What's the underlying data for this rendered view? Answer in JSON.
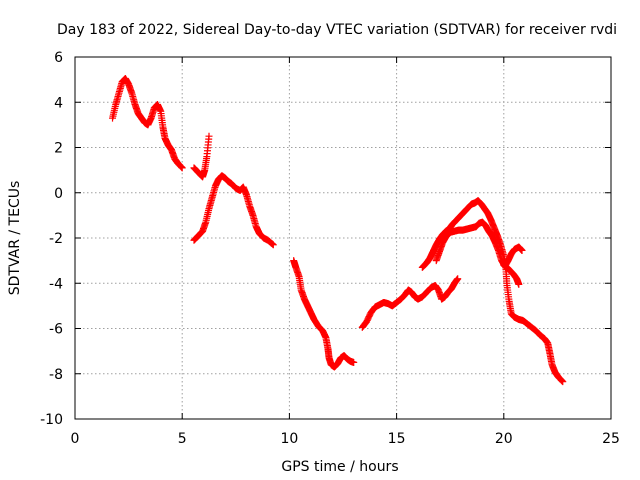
{
  "chart_data": {
    "type": "scatter",
    "title": "Day 183 of 2022, Sidereal Day-to-day VTEC variation (SDTVAR) for receiver rvdi",
    "xlabel": "GPS time / hours",
    "ylabel": "SDTVAR / TECUs",
    "xlim": [
      0,
      25
    ],
    "ylim": [
      -10,
      6
    ],
    "xticks": [
      0,
      5,
      10,
      15,
      20,
      25
    ],
    "yticks": [
      -10,
      -8,
      -6,
      -4,
      -2,
      0,
      2,
      4,
      6
    ],
    "grid": true,
    "marker": "plus",
    "color": "#ff0000",
    "series": [
      {
        "name": "segment-1",
        "points": [
          [
            1.75,
            3.3
          ],
          [
            1.9,
            3.9
          ],
          [
            2.05,
            4.4
          ],
          [
            2.2,
            4.9
          ],
          [
            2.35,
            5.05
          ],
          [
            2.5,
            4.8
          ],
          [
            2.65,
            4.4
          ],
          [
            2.8,
            3.9
          ],
          [
            2.95,
            3.5
          ],
          [
            3.1,
            3.3
          ],
          [
            3.25,
            3.1
          ],
          [
            3.4,
            3.0
          ],
          [
            3.55,
            3.3
          ],
          [
            3.7,
            3.75
          ],
          [
            3.85,
            3.9
          ],
          [
            4.0,
            3.6
          ],
          [
            4.1,
            2.9
          ],
          [
            4.2,
            2.4
          ],
          [
            4.35,
            2.1
          ],
          [
            4.5,
            1.9
          ],
          [
            4.65,
            1.5
          ],
          [
            4.8,
            1.3
          ],
          [
            5.0,
            1.1
          ]
        ]
      },
      {
        "name": "segment-2",
        "points": [
          [
            5.55,
            1.1
          ],
          [
            5.75,
            0.9
          ],
          [
            5.95,
            0.7
          ],
          [
            6.05,
            1.0
          ],
          [
            6.15,
            1.6
          ],
          [
            6.25,
            2.5
          ]
        ]
      },
      {
        "name": "segment-3",
        "points": [
          [
            5.55,
            -2.1
          ],
          [
            5.75,
            -1.9
          ],
          [
            5.95,
            -1.7
          ],
          [
            6.1,
            -1.3
          ],
          [
            6.25,
            -0.7
          ],
          [
            6.4,
            -0.2
          ],
          [
            6.55,
            0.3
          ],
          [
            6.7,
            0.6
          ],
          [
            6.85,
            0.75
          ],
          [
            7.0,
            0.65
          ],
          [
            7.15,
            0.5
          ],
          [
            7.3,
            0.4
          ],
          [
            7.5,
            0.2
          ],
          [
            7.7,
            0.1
          ],
          [
            7.85,
            0.25
          ],
          [
            8.0,
            -0.1
          ],
          [
            8.15,
            -0.6
          ],
          [
            8.3,
            -1.0
          ],
          [
            8.45,
            -1.5
          ],
          [
            8.6,
            -1.8
          ],
          [
            8.8,
            -2.0
          ],
          [
            9.0,
            -2.1
          ],
          [
            9.25,
            -2.3
          ]
        ]
      },
      {
        "name": "segment-4",
        "points": [
          [
            10.2,
            -3.0
          ],
          [
            10.3,
            -3.3
          ],
          [
            10.45,
            -3.7
          ],
          [
            10.55,
            -4.3
          ],
          [
            10.7,
            -4.7
          ],
          [
            10.85,
            -5.0
          ],
          [
            11.0,
            -5.3
          ],
          [
            11.15,
            -5.6
          ],
          [
            11.35,
            -5.9
          ],
          [
            11.55,
            -6.1
          ],
          [
            11.7,
            -6.4
          ],
          [
            11.8,
            -6.9
          ],
          [
            11.85,
            -7.3
          ],
          [
            11.95,
            -7.6
          ],
          [
            12.1,
            -7.7
          ],
          [
            12.25,
            -7.55
          ],
          [
            12.4,
            -7.3
          ],
          [
            12.55,
            -7.2
          ],
          [
            12.7,
            -7.35
          ],
          [
            12.85,
            -7.45
          ],
          [
            13.0,
            -7.5
          ]
        ]
      },
      {
        "name": "segment-5",
        "points": [
          [
            13.4,
            -5.95
          ],
          [
            13.6,
            -5.7
          ],
          [
            13.8,
            -5.3
          ],
          [
            14.0,
            -5.05
          ],
          [
            14.2,
            -4.95
          ],
          [
            14.4,
            -4.85
          ],
          [
            14.6,
            -4.9
          ],
          [
            14.8,
            -5.0
          ],
          [
            15.0,
            -4.85
          ],
          [
            15.2,
            -4.7
          ],
          [
            15.4,
            -4.5
          ],
          [
            15.55,
            -4.3
          ],
          [
            15.7,
            -4.4
          ],
          [
            15.85,
            -4.6
          ],
          [
            16.0,
            -4.7
          ],
          [
            16.2,
            -4.6
          ],
          [
            16.4,
            -4.4
          ],
          [
            16.6,
            -4.2
          ],
          [
            16.8,
            -4.1
          ],
          [
            16.95,
            -4.3
          ],
          [
            17.1,
            -4.7
          ],
          [
            17.25,
            -4.6
          ],
          [
            17.4,
            -4.4
          ],
          [
            17.55,
            -4.25
          ],
          [
            17.7,
            -4.0
          ],
          [
            17.85,
            -3.8
          ]
        ]
      },
      {
        "name": "segment-6",
        "points": [
          [
            16.2,
            -3.3
          ],
          [
            16.4,
            -3.1
          ],
          [
            16.55,
            -2.9
          ],
          [
            16.7,
            -2.6
          ],
          [
            16.85,
            -2.3
          ],
          [
            17.0,
            -2.05
          ],
          [
            17.15,
            -1.85
          ],
          [
            17.3,
            -1.7
          ],
          [
            17.45,
            -1.6
          ],
          [
            17.6,
            -1.4
          ],
          [
            17.75,
            -1.25
          ],
          [
            17.9,
            -1.1
          ],
          [
            18.05,
            -0.95
          ],
          [
            18.2,
            -0.8
          ],
          [
            18.35,
            -0.65
          ],
          [
            18.5,
            -0.5
          ],
          [
            18.65,
            -0.45
          ],
          [
            18.8,
            -0.35
          ],
          [
            18.95,
            -0.5
          ],
          [
            19.1,
            -0.7
          ],
          [
            19.25,
            -0.9
          ],
          [
            19.4,
            -1.2
          ],
          [
            19.55,
            -1.55
          ],
          [
            19.7,
            -1.9
          ],
          [
            19.85,
            -2.3
          ],
          [
            20.0,
            -2.8
          ],
          [
            20.1,
            -3.4
          ],
          [
            20.15,
            -4.1
          ],
          [
            20.25,
            -4.8
          ],
          [
            20.35,
            -5.35
          ],
          [
            20.5,
            -5.5
          ],
          [
            20.7,
            -5.6
          ],
          [
            20.9,
            -5.65
          ],
          [
            21.1,
            -5.8
          ],
          [
            21.3,
            -5.95
          ],
          [
            21.5,
            -6.1
          ],
          [
            21.7,
            -6.3
          ],
          [
            21.9,
            -6.45
          ],
          [
            22.05,
            -6.65
          ],
          [
            22.15,
            -7.1
          ],
          [
            22.25,
            -7.6
          ],
          [
            22.4,
            -7.95
          ],
          [
            22.55,
            -8.15
          ],
          [
            22.75,
            -8.35
          ]
        ]
      },
      {
        "name": "segment-7",
        "points": [
          [
            16.85,
            -3.0
          ],
          [
            17.0,
            -2.6
          ],
          [
            17.15,
            -2.2
          ],
          [
            17.3,
            -1.95
          ],
          [
            17.5,
            -1.75
          ],
          [
            17.7,
            -1.7
          ],
          [
            17.9,
            -1.65
          ],
          [
            18.1,
            -1.65
          ],
          [
            18.3,
            -1.6
          ],
          [
            18.5,
            -1.55
          ],
          [
            18.7,
            -1.5
          ],
          [
            18.85,
            -1.35
          ],
          [
            19.0,
            -1.3
          ],
          [
            19.15,
            -1.45
          ],
          [
            19.3,
            -1.7
          ],
          [
            19.45,
            -1.9
          ],
          [
            19.6,
            -2.2
          ],
          [
            19.75,
            -2.55
          ],
          [
            19.9,
            -3.0
          ],
          [
            20.05,
            -3.25
          ],
          [
            20.2,
            -3.0
          ],
          [
            20.35,
            -2.7
          ],
          [
            20.5,
            -2.5
          ],
          [
            20.7,
            -2.4
          ],
          [
            20.85,
            -2.55
          ]
        ]
      },
      {
        "name": "segment-8",
        "points": [
          [
            20.0,
            -3.2
          ],
          [
            20.15,
            -3.3
          ],
          [
            20.3,
            -3.45
          ],
          [
            20.45,
            -3.6
          ],
          [
            20.6,
            -3.8
          ],
          [
            20.7,
            -4.05
          ]
        ]
      }
    ]
  }
}
